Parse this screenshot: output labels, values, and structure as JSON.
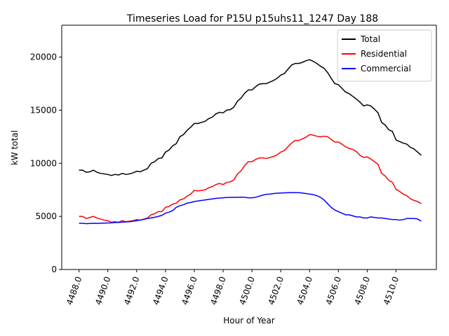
{
  "chart_data": {
    "type": "line",
    "title": "Timeseries Load for P15U p15uhs11_1247  Day 188",
    "xlabel": "Hour of Year",
    "ylabel": "kW total",
    "xlim": [
      4486.8,
      4512.8
    ],
    "ylim": [
      0,
      23000
    ],
    "x_ticks": [
      4488.0,
      4490.0,
      4492.0,
      4494.0,
      4496.0,
      4498.0,
      4500.0,
      4502.0,
      4504.0,
      4506.0,
      4508.0,
      4510.0
    ],
    "x_tick_labels": [
      "4488.0",
      "4490.0",
      "4492.0",
      "4494.0",
      "4496.0",
      "4498.0",
      "4500.0",
      "4502.0",
      "4504.0",
      "4506.0",
      "4508.0",
      "4510.0"
    ],
    "y_ticks": [
      0,
      5000,
      10000,
      15000,
      20000
    ],
    "y_tick_labels": [
      "0",
      "5000",
      "10000",
      "15000",
      "20000"
    ],
    "legend_position": "upper-right",
    "grid": false,
    "x": [
      4488.0,
      4488.25,
      4488.5,
      4488.75,
      4489.0,
      4489.25,
      4489.5,
      4489.75,
      4490.0,
      4490.25,
      4490.5,
      4490.75,
      4491.0,
      4491.25,
      4491.5,
      4491.75,
      4492.0,
      4492.25,
      4492.5,
      4492.75,
      4493.0,
      4493.25,
      4493.5,
      4493.75,
      4494.0,
      4494.25,
      4494.5,
      4494.75,
      4495.0,
      4495.25,
      4495.5,
      4495.75,
      4496.0,
      4496.25,
      4496.5,
      4496.75,
      4497.0,
      4497.25,
      4497.5,
      4497.75,
      4498.0,
      4498.25,
      4498.5,
      4498.75,
      4499.0,
      4499.25,
      4499.5,
      4499.75,
      4500.0,
      4500.25,
      4500.5,
      4500.75,
      4501.0,
      4501.25,
      4501.5,
      4501.75,
      4502.0,
      4502.25,
      4502.5,
      4502.75,
      4503.0,
      4503.25,
      4503.5,
      4503.75,
      4504.0,
      4504.25,
      4504.5,
      4504.75,
      4505.0,
      4505.25,
      4505.5,
      4505.75,
      4506.0,
      4506.25,
      4506.5,
      4506.75,
      4507.0,
      4507.25,
      4507.5,
      4507.75,
      4508.0,
      4508.25,
      4508.5,
      4508.75,
      4509.0,
      4509.25,
      4509.5,
      4509.75,
      4510.0,
      4510.25,
      4510.5,
      4510.75,
      4511.0,
      4511.25,
      4511.5,
      4511.75
    ],
    "series": [
      {
        "name": "Total",
        "color": "#000000",
        "values": [
          9350,
          9350,
          9150,
          9200,
          9350,
          9150,
          9050,
          9000,
          8950,
          8850,
          8950,
          8900,
          9050,
          8950,
          9000,
          9100,
          9250,
          9200,
          9350,
          9500,
          10000,
          10150,
          10450,
          10500,
          11050,
          11250,
          11650,
          11850,
          12500,
          12700,
          13100,
          13400,
          13750,
          13750,
          13850,
          13950,
          14200,
          14350,
          14650,
          14800,
          14750,
          15000,
          15050,
          15300,
          15850,
          16150,
          16600,
          16900,
          16900,
          17200,
          17450,
          17500,
          17500,
          17650,
          17800,
          18000,
          18300,
          18450,
          18850,
          19250,
          19400,
          19400,
          19500,
          19650,
          19750,
          19600,
          19400,
          19150,
          18950,
          18550,
          18000,
          17500,
          17400,
          17050,
          16700,
          16550,
          16300,
          16050,
          15750,
          15400,
          15500,
          15400,
          15100,
          14750,
          13850,
          13600,
          13150,
          13000,
          12200,
          12050,
          11900,
          11800,
          11500,
          11350,
          11050,
          10750
        ]
      },
      {
        "name": "Residential",
        "color": "#ff0000",
        "values": [
          5000,
          5000,
          4800,
          4900,
          5000,
          4850,
          4750,
          4650,
          4600,
          4450,
          4500,
          4450,
          4600,
          4500,
          4550,
          4600,
          4700,
          4650,
          4750,
          4850,
          5150,
          5250,
          5450,
          5450,
          5850,
          5950,
          6150,
          6250,
          6550,
          6650,
          6900,
          7100,
          7450,
          7400,
          7450,
          7500,
          7700,
          7800,
          8000,
          8100,
          8000,
          8200,
          8250,
          8450,
          9000,
          9300,
          9800,
          10150,
          10150,
          10350,
          10500,
          10500,
          10450,
          10550,
          10650,
          10800,
          11050,
          11200,
          11550,
          11900,
          12150,
          12150,
          12300,
          12450,
          12700,
          12650,
          12550,
          12500,
          12550,
          12500,
          12250,
          12000,
          12000,
          11800,
          11550,
          11400,
          11300,
          11100,
          10750,
          10550,
          10600,
          10400,
          10150,
          9900,
          9050,
          8800,
          8400,
          8200,
          7550,
          7350,
          7100,
          6950,
          6650,
          6500,
          6400,
          6200
        ]
      },
      {
        "name": "Commercial",
        "color": "#0000ff",
        "values": [
          4350,
          4350,
          4320,
          4330,
          4350,
          4340,
          4360,
          4370,
          4380,
          4390,
          4420,
          4430,
          4460,
          4480,
          4500,
          4550,
          4600,
          4650,
          4720,
          4800,
          4850,
          4920,
          5000,
          5100,
          5300,
          5400,
          5550,
          5850,
          6000,
          6100,
          6250,
          6300,
          6400,
          6450,
          6500,
          6550,
          6600,
          6650,
          6700,
          6720,
          6750,
          6780,
          6790,
          6800,
          6800,
          6810,
          6800,
          6750,
          6750,
          6800,
          6900,
          7000,
          7080,
          7100,
          7150,
          7180,
          7200,
          7220,
          7230,
          7240,
          7240,
          7230,
          7200,
          7150,
          7100,
          7050,
          6950,
          6800,
          6550,
          6200,
          5850,
          5600,
          5450,
          5300,
          5150,
          5150,
          5050,
          4950,
          4950,
          4850,
          4850,
          4950,
          4900,
          4850,
          4850,
          4800,
          4750,
          4700,
          4700,
          4650,
          4700,
          4800,
          4800,
          4800,
          4750,
          4550
        ]
      }
    ]
  }
}
